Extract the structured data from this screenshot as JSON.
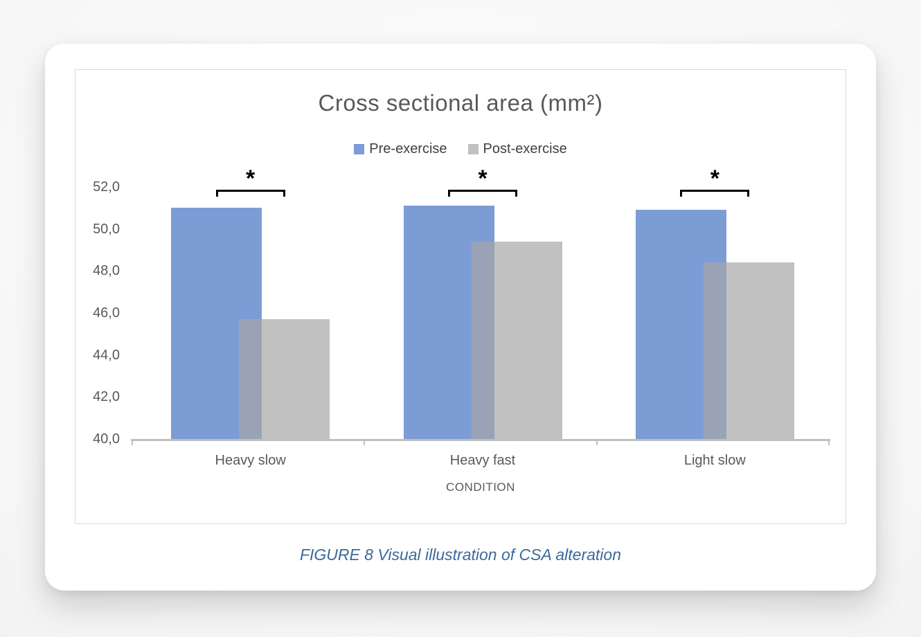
{
  "figure": {
    "caption": "FIGURE 8 Visual illustration of CSA alteration"
  },
  "chart_data": {
    "type": "bar",
    "title": "Cross sectional area (mm²)",
    "categories": [
      "Heavy slow",
      "Heavy fast",
      "Light slow"
    ],
    "series": [
      {
        "name": "Pre-exercise",
        "color": "#4472C4",
        "values": [
          51.0,
          51.1,
          50.9
        ]
      },
      {
        "name": "Post-exercise",
        "color": "#A6A6A6",
        "values": [
          45.7,
          49.4,
          48.4
        ]
      }
    ],
    "xlabel": "CONDITION",
    "ylabel": "",
    "ylim": [
      40,
      52
    ],
    "yticks": [
      {
        "value": 52,
        "label": "52,0"
      },
      {
        "value": 50,
        "label": "50,0"
      },
      {
        "value": 48,
        "label": "48,0"
      },
      {
        "value": 46,
        "label": "46,0"
      },
      {
        "value": 44,
        "label": "44,0"
      },
      {
        "value": 42,
        "label": "42,0"
      },
      {
        "value": 40,
        "label": "40,0"
      }
    ],
    "grid": false,
    "legend_position": "top",
    "bar_opacity": 0.7,
    "bars_overlap": true,
    "annotations": [
      {
        "category_index": 0,
        "label": "*"
      },
      {
        "category_index": 1,
        "label": "*"
      },
      {
        "category_index": 2,
        "label": "*"
      }
    ]
  },
  "colors": {
    "title_text": "#595959",
    "axis_text": "#595959",
    "legend_text": "#404040",
    "axis_line": "#BFBFBF",
    "caption_text": "#3C699B",
    "significance": "#000000",
    "frame_border": "#D9D9D9",
    "card_background": "#FFFFFF"
  }
}
